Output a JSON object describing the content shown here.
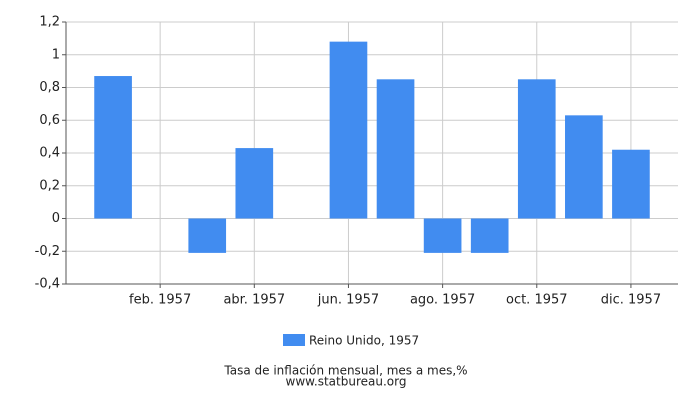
{
  "chart_data": {
    "type": "bar",
    "categories": [
      null,
      "feb. 1957",
      null,
      "abr. 1957",
      null,
      "jun. 1957",
      null,
      "ago. 1957",
      null,
      "oct. 1957",
      null,
      "dic. 1957"
    ],
    "series": [
      {
        "name": "Reino Unido, 1957",
        "color": "#418cf0",
        "values": [
          0.87,
          0,
          -0.21,
          0.43,
          0,
          1.08,
          0.85,
          -0.21,
          -0.21,
          0.85,
          0.63,
          0.42
        ]
      }
    ],
    "ylim": [
      -0.4,
      1.2
    ],
    "yticks": [
      {
        "value": -0.4,
        "label": "-0,4"
      },
      {
        "value": -0.2,
        "label": "-0,2"
      },
      0,
      {
        "value": 0.2,
        "label": "0,2"
      },
      {
        "value": 0.4,
        "label": "0,4"
      },
      {
        "value": 0.6,
        "label": "0,6"
      },
      {
        "value": 0.8,
        "label": "0,8"
      },
      1,
      {
        "value": 1.2,
        "label": "1,2"
      }
    ],
    "grid": true,
    "legend": "bottom",
    "caption": "Tasa de inflación mensual, mes a mes,%",
    "source": "www.statbureau.org"
  }
}
